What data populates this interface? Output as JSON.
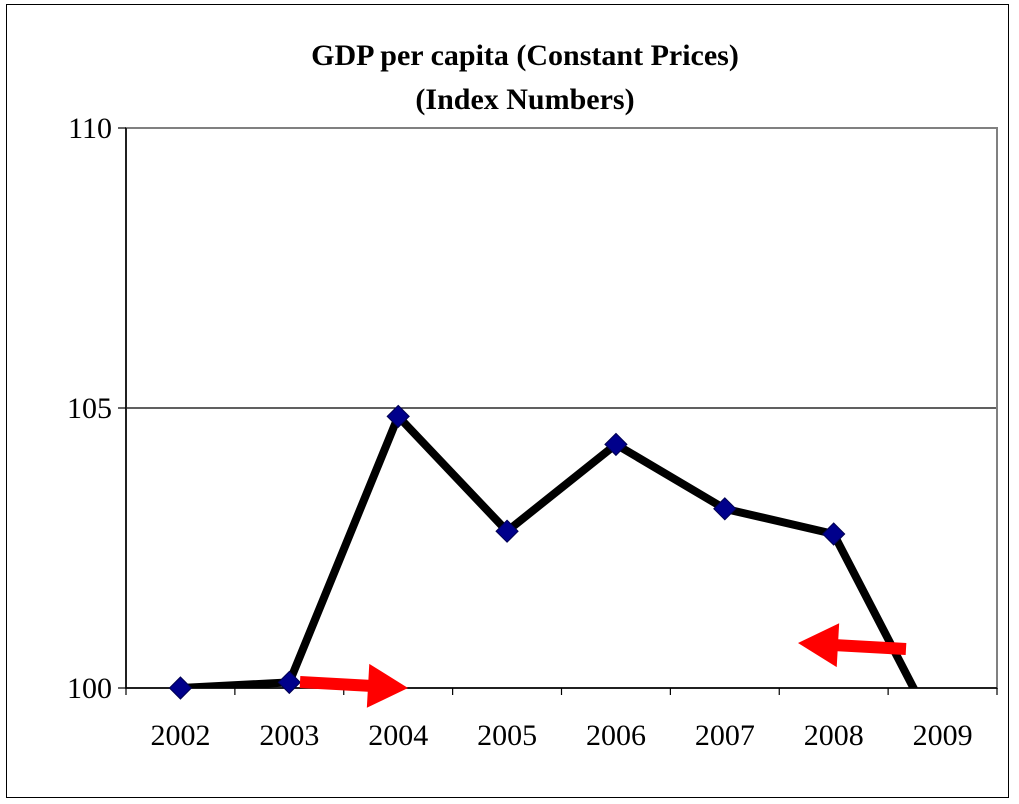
{
  "chart_data": {
    "type": "line",
    "title": "GDP per capita (Constant  Prices)",
    "subtitle": "(Index Numbers)",
    "xlabel": "",
    "ylabel": "",
    "categories": [
      "2002",
      "2003",
      "2004",
      "2005",
      "2006",
      "2007",
      "2008",
      "2009"
    ],
    "series": [
      {
        "values": [
          100.0,
          100.1,
          104.85,
          102.8,
          104.35,
          103.2,
          102.75,
          99.0
        ]
      }
    ],
    "ylim": [
      100,
      110
    ],
    "yticks": [
      100,
      105,
      110
    ],
    "grid": {
      "y": true,
      "x": false
    },
    "annotations": [
      {
        "type": "arrow",
        "color": "#ff0000",
        "direction": "right",
        "near": "2003"
      },
      {
        "type": "arrow",
        "color": "#ff0000",
        "direction": "left",
        "near": "2008"
      }
    ],
    "colors": {
      "line": "#000000",
      "marker": "#00008b",
      "grid": "#000000",
      "plot_border": "#808080"
    }
  }
}
